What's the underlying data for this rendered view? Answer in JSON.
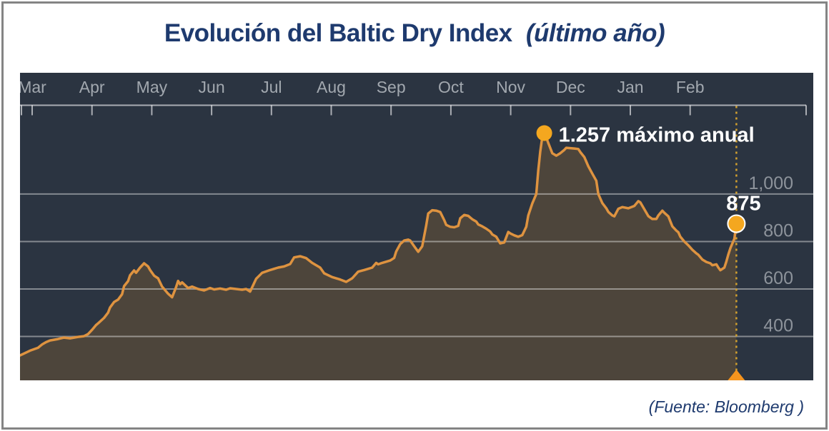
{
  "title": {
    "main": "Evolución del Baltic Dry Index",
    "subtitle": "(último año)"
  },
  "source": "(Fuente: Bloomberg )",
  "colors": {
    "title_blue": "#1e3a6e",
    "panel_background": "#2b3441",
    "area_fill": "#4d453b",
    "series_line": "#de9340",
    "marker_dot": "#f4a71f",
    "dotted_line": "#d3a12e",
    "triangle": "#f6941e",
    "gridline": "rgba(255,255,255,0.42)",
    "axis_line": "rgba(255,255,255,0.6)",
    "month_label": "#a2a8af",
    "y_label": "#8d939b",
    "annotation_text": "#ffffff"
  },
  "chart_data": {
    "type": "area",
    "title": "Evolución del Baltic Dry Index (último año)",
    "xlabel": "",
    "ylabel": "",
    "x_axis": {
      "position": "top",
      "labels": [
        "Mar",
        "Apr",
        "May",
        "Jun",
        "Jul",
        "Aug",
        "Sep",
        "Oct",
        "Nov",
        "Dec",
        "Jan",
        "Feb"
      ]
    },
    "y_axis": {
      "side": "right",
      "ticks": [
        1000,
        800,
        600,
        400
      ],
      "tick_labels": [
        "1,000",
        "800",
        "600",
        "400"
      ]
    },
    "ylim": [
      215,
      1511
    ],
    "xlim_days": [
      0,
      358
    ],
    "grid": true,
    "series": [
      {
        "name": "Baltic Dry Index",
        "points": [
          [
            0,
            320
          ],
          [
            2,
            328
          ],
          [
            5,
            340
          ],
          [
            9,
            352
          ],
          [
            11,
            366
          ],
          [
            13,
            376
          ],
          [
            15,
            383
          ],
          [
            19,
            389
          ],
          [
            22,
            395
          ],
          [
            25,
            392
          ],
          [
            29,
            398
          ],
          [
            32,
            401
          ],
          [
            34,
            410
          ],
          [
            36,
            428
          ],
          [
            38,
            448
          ],
          [
            39,
            455
          ],
          [
            42,
            478
          ],
          [
            44,
            500
          ],
          [
            45,
            522
          ],
          [
            47,
            545
          ],
          [
            49,
            555
          ],
          [
            51,
            578
          ],
          [
            52,
            612
          ],
          [
            54,
            633
          ],
          [
            55,
            658
          ],
          [
            57,
            678
          ],
          [
            58,
            668
          ],
          [
            60,
            690
          ],
          [
            62,
            708
          ],
          [
            64,
            695
          ],
          [
            65,
            680
          ],
          [
            67,
            656
          ],
          [
            69,
            645
          ],
          [
            71,
            610
          ],
          [
            74,
            580
          ],
          [
            76,
            565
          ],
          [
            78,
            608
          ],
          [
            79,
            634
          ],
          [
            80,
            620
          ],
          [
            81,
            628
          ],
          [
            84,
            604
          ],
          [
            86,
            610
          ],
          [
            89,
            600
          ],
          [
            92,
            594
          ],
          [
            95,
            604
          ],
          [
            97,
            598
          ],
          [
            100,
            602
          ],
          [
            103,
            597
          ],
          [
            105,
            603
          ],
          [
            108,
            600
          ],
          [
            111,
            597
          ],
          [
            113,
            600
          ],
          [
            115,
            589
          ],
          [
            118,
            643
          ],
          [
            121,
            668
          ],
          [
            125,
            680
          ],
          [
            129,
            690
          ],
          [
            132,
            695
          ],
          [
            135,
            705
          ],
          [
            137,
            733
          ],
          [
            140,
            738
          ],
          [
            143,
            730
          ],
          [
            146,
            710
          ],
          [
            150,
            690
          ],
          [
            152,
            666
          ],
          [
            156,
            650
          ],
          [
            160,
            640
          ],
          [
            163,
            630
          ],
          [
            166,
            645
          ],
          [
            169,
            673
          ],
          [
            172,
            680
          ],
          [
            176,
            690
          ],
          [
            178,
            710
          ],
          [
            179,
            704
          ],
          [
            181,
            710
          ],
          [
            185,
            720
          ],
          [
            187,
            731
          ],
          [
            188,
            758
          ],
          [
            190,
            789
          ],
          [
            192,
            804
          ],
          [
            194,
            808
          ],
          [
            195,
            804
          ],
          [
            197,
            780
          ],
          [
            199,
            757
          ],
          [
            201,
            780
          ],
          [
            203,
            868
          ],
          [
            204,
            918
          ],
          [
            206,
            932
          ],
          [
            208,
            930
          ],
          [
            210,
            924
          ],
          [
            212,
            890
          ],
          [
            213,
            870
          ],
          [
            215,
            862
          ],
          [
            217,
            860
          ],
          [
            219,
            866
          ],
          [
            220,
            898
          ],
          [
            222,
            912
          ],
          [
            224,
            908
          ],
          [
            226,
            894
          ],
          [
            228,
            884
          ],
          [
            229,
            872
          ],
          [
            231,
            864
          ],
          [
            233,
            854
          ],
          [
            235,
            842
          ],
          [
            236,
            830
          ],
          [
            238,
            820
          ],
          [
            240,
            792
          ],
          [
            242,
            796
          ],
          [
            244,
            840
          ],
          [
            245,
            834
          ],
          [
            247,
            826
          ],
          [
            249,
            820
          ],
          [
            251,
            827
          ],
          [
            253,
            862
          ],
          [
            254,
            910
          ],
          [
            256,
            960
          ],
          [
            258,
            1000
          ],
          [
            259,
            1100
          ],
          [
            260,
            1180
          ],
          [
            261,
            1240
          ],
          [
            262,
            1257
          ],
          [
            263,
            1238
          ],
          [
            264,
            1215
          ],
          [
            266,
            1172
          ],
          [
            268,
            1162
          ],
          [
            270,
            1172
          ],
          [
            272,
            1186
          ],
          [
            273,
            1195
          ],
          [
            277,
            1192
          ],
          [
            279,
            1190
          ],
          [
            280,
            1177
          ],
          [
            282,
            1156
          ],
          [
            284,
            1117
          ],
          [
            286,
            1086
          ],
          [
            288,
            1056
          ],
          [
            289,
            1000
          ],
          [
            291,
            962
          ],
          [
            293,
            940
          ],
          [
            294,
            925
          ],
          [
            296,
            910
          ],
          [
            297,
            906
          ],
          [
            299,
            938
          ],
          [
            301,
            945
          ],
          [
            304,
            940
          ],
          [
            307,
            950
          ],
          [
            309,
            970
          ],
          [
            310,
            965
          ],
          [
            312,
            936
          ],
          [
            314,
            907
          ],
          [
            316,
            895
          ],
          [
            318,
            895
          ],
          [
            319,
            910
          ],
          [
            321,
            930
          ],
          [
            322,
            921
          ],
          [
            324,
            906
          ],
          [
            326,
            864
          ],
          [
            328,
            846
          ],
          [
            329,
            839
          ],
          [
            330,
            820
          ],
          [
            332,
            800
          ],
          [
            334,
            784
          ],
          [
            336,
            765
          ],
          [
            338,
            750
          ],
          [
            339,
            744
          ],
          [
            341,
            724
          ],
          [
            343,
            714
          ],
          [
            345,
            708
          ],
          [
            346,
            700
          ],
          [
            348,
            704
          ],
          [
            349,
            690
          ],
          [
            350,
            679
          ],
          [
            352,
            690
          ],
          [
            353,
            716
          ],
          [
            354,
            746
          ],
          [
            355,
            772
          ],
          [
            357,
            812
          ],
          [
            358,
            875
          ]
        ]
      }
    ],
    "annotations": [
      {
        "id": "max",
        "type": "point-label",
        "day": 262,
        "value": 1257,
        "label": "1.257 máximo anual"
      },
      {
        "id": "current",
        "type": "point-label",
        "day": 358,
        "value": 875,
        "label": "875"
      },
      {
        "id": "current-line",
        "type": "vline",
        "day": 358
      }
    ]
  }
}
